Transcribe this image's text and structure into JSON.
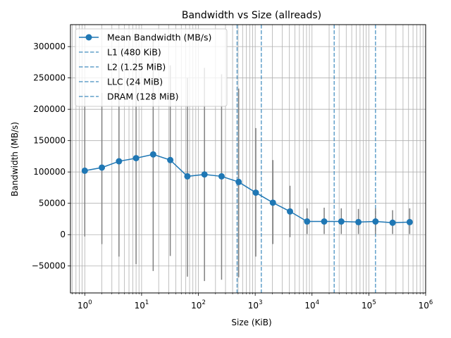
{
  "chart_data": {
    "type": "line",
    "title": "Bandwidth vs Size (allreads)",
    "xlabel": "Size (KiB)",
    "ylabel": "Bandwidth (MB/s)",
    "x_scale": "log",
    "xlim": [
      0.56,
      1000000
    ],
    "ylim": [
      -93000,
      335000
    ],
    "grid": true,
    "grid_minor_x": true,
    "legend_position": "top-left",
    "x_ticks": [
      {
        "value": 1,
        "base": "10",
        "exp": "0"
      },
      {
        "value": 10,
        "base": "10",
        "exp": "1"
      },
      {
        "value": 100,
        "base": "10",
        "exp": "2"
      },
      {
        "value": 1000,
        "base": "10",
        "exp": "3"
      },
      {
        "value": 10000,
        "base": "10",
        "exp": "4"
      },
      {
        "value": 100000,
        "base": "10",
        "exp": "5"
      },
      {
        "value": 1000000,
        "base": "10",
        "exp": "6"
      }
    ],
    "y_ticks": [
      {
        "value": -50000,
        "label": "−50000"
      },
      {
        "value": 0,
        "label": "0"
      },
      {
        "value": 50000,
        "label": "50000"
      },
      {
        "value": 100000,
        "label": "100000"
      },
      {
        "value": 150000,
        "label": "150000"
      },
      {
        "value": 200000,
        "label": "200000"
      },
      {
        "value": 250000,
        "label": "250000"
      },
      {
        "value": 300000,
        "label": "300000"
      }
    ],
    "series": [
      {
        "name": "Mean Bandwidth (MB/s)",
        "color": "#1f77b4",
        "marker": "circle",
        "x": [
          1,
          2,
          4,
          8,
          16,
          32,
          64,
          128,
          256,
          512,
          1024,
          2048,
          4096,
          8192,
          16384,
          32768,
          65536,
          131072,
          262144,
          524288
        ],
        "y": [
          102000,
          107000,
          117000,
          122000,
          128000,
          119000,
          93000,
          96000,
          93000,
          84000,
          67000,
          51000,
          37000,
          21000,
          21000,
          21000,
          20000,
          21000,
          19000,
          20000
        ],
        "error_low": [
          -3000,
          -15000,
          -35000,
          -47000,
          -58000,
          -34000,
          -67000,
          -74000,
          -72000,
          -68000,
          -35000,
          -15000,
          -4000,
          1000,
          1000,
          1000,
          1000,
          1000,
          1000,
          1000
        ],
        "error_high": [
          225000,
          226000,
          266000,
          290000,
          314000,
          270000,
          250000,
          266000,
          256000,
          233000,
          170000,
          119000,
          78000,
          42000,
          43000,
          42000,
          41000,
          42000,
          39000,
          42000
        ],
        "error_color": "#808080"
      }
    ],
    "reference_lines": [
      {
        "name": "L1 (480 KiB)",
        "x": 480,
        "color": "#1f77b4",
        "style": "dashed"
      },
      {
        "name": "L2 (1.25 MiB)",
        "x": 1280,
        "color": "#1f77b4",
        "style": "dashed"
      },
      {
        "name": "LLC (24 MiB)",
        "x": 24576,
        "color": "#1f77b4",
        "style": "dashed"
      },
      {
        "name": "DRAM (128 MiB)",
        "x": 131072,
        "color": "#1f77b4",
        "style": "dashed"
      }
    ]
  }
}
